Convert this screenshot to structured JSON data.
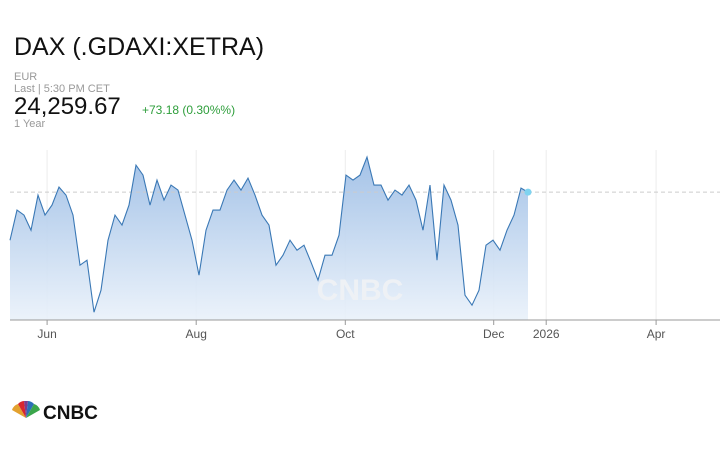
{
  "chart_data": {
    "type": "area",
    "title": "DAX (.GDAXI:XETRA)",
    "currency": "EUR",
    "last_time": "Last | 5:30 PM CET",
    "price": "24,259.67",
    "change": "+73.18 (0.30%%)",
    "range": "1 Year",
    "logo": "CNBC",
    "x": [
      0,
      1,
      2,
      3,
      4,
      5,
      6,
      7,
      8,
      9,
      10,
      11,
      12,
      13,
      14,
      15,
      16,
      17,
      18,
      19,
      20,
      21,
      22,
      23,
      24,
      25,
      26,
      27,
      28,
      29,
      30,
      31,
      32,
      33,
      34,
      35,
      36,
      37,
      38,
      39,
      40,
      41,
      42,
      43,
      44,
      45,
      46,
      47,
      48,
      49,
      50,
      51,
      52,
      53,
      54,
      55,
      56,
      57,
      58,
      59,
      60,
      61,
      62,
      63,
      64,
      65,
      66,
      67,
      68,
      69,
      70,
      71,
      72,
      73,
      74
    ],
    "series": [
      {
        "color": "#3a78b5",
        "values": [
          23655,
          24033,
          23970,
          23781,
          24222,
          23970,
          24096,
          24323,
          24222,
          23970,
          23340,
          23403,
          22748,
          23025,
          23655,
          23970,
          23844,
          24096,
          24600,
          24474,
          24096,
          24411,
          24159,
          24348,
          24285,
          23970,
          23655,
          23214,
          23781,
          24033,
          24033,
          24285,
          24411,
          24285,
          24436,
          24222,
          23970,
          23844,
          23340,
          23466,
          23655,
          23529,
          23592,
          23378,
          23151,
          23466,
          23466,
          23718,
          24474,
          24411,
          24474,
          24701,
          24348,
          24348,
          24159,
          24285,
          24222,
          24348,
          24159,
          23781,
          24348,
          23403,
          24348,
          24159,
          23844,
          22962,
          22836,
          23025,
          23592,
          23655,
          23529,
          23781,
          23970,
          24310,
          24259.67
        ]
      }
    ],
    "xlim": [
      0,
      100
    ],
    "xticks": [
      {
        "value": 5.3,
        "label": "Jun"
      },
      {
        "value": 26.6,
        "label": "Aug"
      },
      {
        "value": 47.9,
        "label": "Oct"
      },
      {
        "value": 69.1,
        "label": "Dec"
      },
      {
        "value": 76.6,
        "label": "2026"
      },
      {
        "value": 92.3,
        "label": "Apr"
      }
    ],
    "ylim": [
      22650,
      24790
    ]
  }
}
